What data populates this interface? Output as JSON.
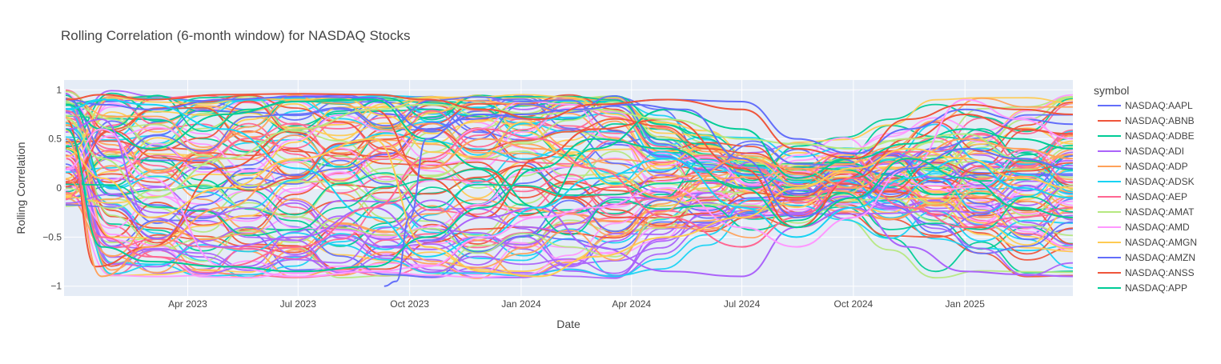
{
  "chart_data": {
    "type": "line",
    "title": "Rolling Correlation (6-month window) for NASDAQ Stocks",
    "xlabel": "Date",
    "ylabel": "Rolling Correlation",
    "xlim": [
      "2022-12-20",
      "2025-03-31"
    ],
    "ylim": [
      -1.1,
      1.1
    ],
    "x_ticks": [
      {
        "date": "2023-04-01",
        "label": "Apr 2023"
      },
      {
        "date": "2023-07-01",
        "label": "Jul 2023"
      },
      {
        "date": "2023-10-01",
        "label": "Oct 2023"
      },
      {
        "date": "2024-01-01",
        "label": "Jan 2024"
      },
      {
        "date": "2024-04-01",
        "label": "Apr 2024"
      },
      {
        "date": "2024-07-01",
        "label": "Jul 2024"
      },
      {
        "date": "2024-10-01",
        "label": "Oct 2024"
      },
      {
        "date": "2025-01-01",
        "label": "Jan 2025"
      }
    ],
    "y_ticks": [
      {
        "value": 1,
        "label": "1"
      },
      {
        "value": 0.5,
        "label": "0.5"
      },
      {
        "value": 0,
        "label": "0"
      },
      {
        "value": -0.5,
        "label": "−0.5"
      },
      {
        "value": -1,
        "label": "−1"
      }
    ],
    "grid": true,
    "legend": {
      "title": "symbol",
      "placement": "right"
    },
    "palette": [
      "#636efa",
      "#EF553B",
      "#00cc96",
      "#ab63fa",
      "#FFA15A",
      "#19d3f3",
      "#FF6692",
      "#B6E880",
      "#FF97FF",
      "#FECB52"
    ],
    "series": [
      {
        "name": "NASDAQ:AAPL",
        "color": "#636efa",
        "x": [
          "2022-12-22",
          "2023-01-20",
          "2023-03-01",
          "2023-05-01",
          "2023-07-01",
          "2023-09-01",
          "2023-10-15",
          "2023-12-01",
          "2024-01-15",
          "2024-03-01",
          "2024-05-01",
          "2024-07-01",
          "2024-08-15",
          "2024-10-01",
          "2024-11-15",
          "2025-01-01",
          "2025-02-15",
          "2025-03-31"
        ],
        "values": [
          0.9,
          0.85,
          0.8,
          0.9,
          0.93,
          0.92,
          0.6,
          0.75,
          0.7,
          0.85,
          0.9,
          0.88,
          0.5,
          0.35,
          0.6,
          0.8,
          0.7,
          0.65
        ]
      },
      {
        "name": "NASDAQ:ABNB",
        "color": "#EF553B",
        "x": [
          "2022-12-22",
          "2023-01-15",
          "2023-03-01",
          "2023-05-01",
          "2023-07-01",
          "2023-09-01",
          "2023-10-15",
          "2023-12-01",
          "2024-01-15",
          "2024-03-01",
          "2024-05-01",
          "2024-07-01",
          "2024-08-15",
          "2024-10-01",
          "2024-11-15",
          "2025-01-01",
          "2025-02-15",
          "2025-03-31"
        ],
        "values": [
          0.7,
          -0.8,
          -0.6,
          0.2,
          0.6,
          0.8,
          0.1,
          -0.3,
          0.3,
          0.6,
          0.7,
          0.2,
          -0.4,
          0.1,
          0.5,
          0.75,
          0.6,
          0.55
        ]
      },
      {
        "name": "NASDAQ:ADBE",
        "color": "#00cc96",
        "x": [
          "2022-12-22",
          "2023-01-20",
          "2023-03-01",
          "2023-05-01",
          "2023-07-01",
          "2023-09-01",
          "2023-10-15",
          "2023-12-01",
          "2024-01-15",
          "2024-03-01",
          "2024-05-01",
          "2024-07-01",
          "2024-08-15",
          "2024-10-01",
          "2024-11-15",
          "2025-01-01",
          "2025-02-15",
          "2025-03-31"
        ],
        "values": [
          0.85,
          0.6,
          0.4,
          0.75,
          0.88,
          0.9,
          0.5,
          0.2,
          -0.2,
          0.4,
          0.8,
          0.6,
          0.1,
          0.3,
          0.45,
          0.6,
          0.5,
          0.4
        ]
      },
      {
        "name": "NASDAQ:ADI",
        "color": "#ab63fa",
        "x": [
          "2022-12-22",
          "2023-01-20",
          "2023-03-01",
          "2023-05-01",
          "2023-07-01",
          "2023-09-01",
          "2023-10-15",
          "2023-12-01",
          "2024-01-15",
          "2024-03-01",
          "2024-05-01",
          "2024-07-01",
          "2024-08-15",
          "2024-10-01",
          "2024-11-15",
          "2025-01-01",
          "2025-02-15",
          "2025-03-31"
        ],
        "values": [
          0.6,
          0.7,
          -0.3,
          -0.6,
          -0.5,
          -0.2,
          -0.55,
          -0.3,
          -0.2,
          -0.6,
          -0.85,
          -0.9,
          -0.4,
          -0.2,
          -0.6,
          -0.85,
          -0.88,
          -0.9
        ]
      },
      {
        "name": "NASDAQ:ADP",
        "color": "#FFA15A",
        "x": [
          "2022-12-22",
          "2023-01-20",
          "2023-03-01",
          "2023-05-01",
          "2023-07-01",
          "2023-09-01",
          "2023-10-15",
          "2023-12-01",
          "2024-01-15",
          "2024-03-01",
          "2024-05-01",
          "2024-07-01",
          "2024-08-15",
          "2024-10-01",
          "2024-11-15",
          "2025-01-01",
          "2025-02-15",
          "2025-03-31"
        ],
        "values": [
          0.5,
          -0.9,
          -0.6,
          -0.2,
          0.3,
          0.5,
          0.2,
          0.5,
          0.4,
          0.2,
          -0.1,
          0.3,
          0.2,
          0.0,
          0.3,
          0.5,
          0.4,
          0.3
        ]
      },
      {
        "name": "NASDAQ:ADSK",
        "color": "#19d3f3",
        "x": [
          "2022-12-22",
          "2023-01-20",
          "2023-03-01",
          "2023-05-01",
          "2023-07-01",
          "2023-09-01",
          "2023-10-15",
          "2023-12-01",
          "2024-01-15",
          "2024-03-01",
          "2024-05-01",
          "2024-07-01",
          "2024-08-15",
          "2024-10-01",
          "2024-11-15",
          "2025-01-01",
          "2025-02-15",
          "2025-03-31"
        ],
        "values": [
          0.8,
          0.9,
          0.85,
          0.6,
          0.2,
          -0.3,
          -0.7,
          -0.5,
          -0.2,
          0.1,
          0.3,
          -0.2,
          -0.5,
          -0.2,
          0.1,
          0.3,
          0.0,
          -0.1
        ]
      },
      {
        "name": "NASDAQ:AEP",
        "color": "#FF6692",
        "x": [
          "2022-12-22",
          "2023-01-20",
          "2023-03-01",
          "2023-05-01",
          "2023-07-01",
          "2023-09-01",
          "2023-10-15",
          "2023-12-01",
          "2024-01-15",
          "2024-03-01",
          "2024-05-01",
          "2024-07-01",
          "2024-08-15",
          "2024-10-01",
          "2024-11-15",
          "2025-01-01",
          "2025-02-15",
          "2025-03-31"
        ],
        "values": [
          0.3,
          -0.5,
          -0.7,
          -0.8,
          -0.6,
          -0.2,
          0.3,
          0.6,
          0.5,
          0.2,
          -0.3,
          -0.6,
          -0.3,
          0.1,
          -0.2,
          -0.4,
          -0.3,
          -0.2
        ]
      },
      {
        "name": "NASDAQ:AMAT",
        "color": "#B6E880",
        "x": [
          "2022-12-22",
          "2023-01-20",
          "2023-03-01",
          "2023-05-01",
          "2023-07-01",
          "2023-09-01",
          "2023-10-15",
          "2023-12-01",
          "2024-01-15",
          "2024-03-01",
          "2024-05-01",
          "2024-07-01",
          "2024-08-15",
          "2024-10-01",
          "2024-11-15",
          "2025-01-01",
          "2025-02-15",
          "2025-03-31"
        ],
        "values": [
          0.7,
          0.3,
          -0.1,
          0.3,
          0.6,
          0.8,
          0.85,
          0.8,
          0.75,
          0.8,
          0.7,
          0.5,
          0.45,
          0.4,
          0.5,
          0.55,
          0.3,
          0.2
        ]
      },
      {
        "name": "NASDAQ:AMD",
        "color": "#FF97FF",
        "x": [
          "2022-12-22",
          "2023-01-20",
          "2023-03-01",
          "2023-05-01",
          "2023-07-01",
          "2023-09-01",
          "2023-10-15",
          "2023-12-01",
          "2024-01-15",
          "2024-03-01",
          "2024-05-01",
          "2024-07-01",
          "2024-08-15",
          "2024-10-01",
          "2024-11-15",
          "2025-01-01",
          "2025-02-15",
          "2025-03-31"
        ],
        "values": [
          0.2,
          0.6,
          0.1,
          -0.8,
          -0.9,
          -0.85,
          -0.8,
          -0.5,
          -0.3,
          -0.2,
          0.0,
          -0.4,
          -0.6,
          -0.3,
          0.2,
          0.9,
          0.7,
          0.5
        ]
      },
      {
        "name": "NASDAQ:AMGN",
        "color": "#FECB52",
        "x": [
          "2022-12-22",
          "2023-01-20",
          "2023-03-01",
          "2023-05-01",
          "2023-07-01",
          "2023-09-01",
          "2023-10-15",
          "2023-12-01",
          "2024-01-15",
          "2024-03-01",
          "2024-05-01",
          "2024-07-01",
          "2024-08-15",
          "2024-10-01",
          "2024-11-15",
          "2025-01-01",
          "2025-02-15",
          "2025-03-31"
        ],
        "values": [
          0.4,
          0.1,
          -0.3,
          0.0,
          0.3,
          0.5,
          -0.6,
          -0.85,
          -0.9,
          -0.7,
          -0.5,
          -0.3,
          0.0,
          0.2,
          0.4,
          0.3,
          0.1,
          0.0
        ]
      },
      {
        "name": "NASDAQ:AMZN",
        "color": "#636efa",
        "x": [
          "2023-09-10",
          "2023-09-20",
          "2023-10-01",
          "2023-10-15",
          "2023-11-15",
          "2024-01-01",
          "2024-02-15",
          "2024-04-01",
          "2024-05-15",
          "2024-07-01",
          "2024-08-15",
          "2024-10-01",
          "2024-11-15",
          "2025-01-01",
          "2025-02-15",
          "2025-03-31"
        ],
        "values": [
          -1.0,
          -0.95,
          -0.3,
          0.5,
          0.7,
          0.75,
          0.8,
          0.85,
          0.8,
          0.3,
          -0.3,
          -0.1,
          0.2,
          0.4,
          0.3,
          0.2
        ]
      },
      {
        "name": "NASDAQ:ANSS",
        "color": "#EF553B",
        "x": [
          "2022-12-22",
          "2023-01-20",
          "2023-03-01",
          "2023-05-01",
          "2023-07-01",
          "2023-09-01",
          "2023-10-15",
          "2023-12-01",
          "2024-01-15",
          "2024-03-01",
          "2024-05-01",
          "2024-07-01",
          "2024-08-15",
          "2024-10-01",
          "2024-11-15",
          "2025-01-01",
          "2025-02-15",
          "2025-03-31"
        ],
        "values": [
          0.9,
          0.95,
          0.9,
          0.95,
          0.96,
          0.95,
          0.9,
          0.8,
          0.7,
          0.85,
          0.9,
          0.8,
          0.4,
          0.3,
          0.7,
          0.85,
          0.8,
          0.75
        ]
      },
      {
        "name": "NASDAQ:APP",
        "color": "#00cc96",
        "x": [
          "2022-12-22",
          "2023-01-20",
          "2023-03-01",
          "2023-05-01",
          "2023-07-01",
          "2023-09-01",
          "2023-10-15",
          "2023-12-01",
          "2024-01-15",
          "2024-03-01",
          "2024-05-01",
          "2024-07-01",
          "2024-08-15",
          "2024-10-01",
          "2024-11-15",
          "2025-01-01",
          "2025-02-15",
          "2025-03-31"
        ],
        "values": [
          0.6,
          -0.6,
          -0.75,
          -0.8,
          -0.85,
          -0.8,
          -0.5,
          -0.2,
          0.2,
          0.5,
          0.4,
          0.0,
          -0.4,
          -0.1,
          0.3,
          0.1,
          -0.2,
          -0.3
        ]
      }
    ]
  }
}
